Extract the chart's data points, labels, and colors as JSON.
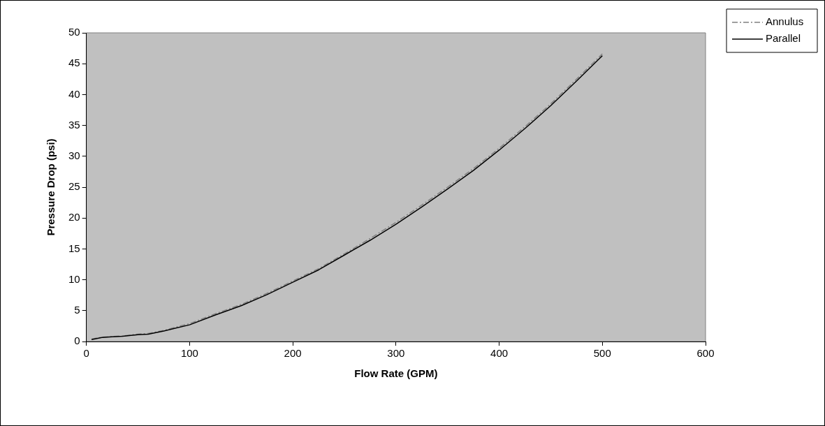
{
  "chart_data": {
    "type": "line",
    "xlabel": "Flow Rate (GPM)",
    "ylabel": "Pressure Drop (psi)",
    "xlim": [
      0,
      600
    ],
    "xticks": [
      0,
      100,
      200,
      300,
      400,
      500,
      600
    ],
    "ylim": [
      0,
      50
    ],
    "yticks": [
      0,
      5,
      10,
      15,
      20,
      25,
      30,
      35,
      40,
      45,
      50
    ],
    "grid": false,
    "legend": "top right",
    "marker": "none",
    "x": [
      5,
      15,
      25,
      35,
      50,
      60,
      75,
      100,
      125,
      150,
      175,
      200,
      225,
      250,
      275,
      300,
      325,
      350,
      375,
      400,
      425,
      450,
      475,
      500
    ],
    "series": [
      {
        "name": "Annulus",
        "color": "#808080",
        "line_style": "dashed",
        "values": [
          0.4,
          0.7,
          0.8,
          0.9,
          1.2,
          1.3,
          1.8,
          2.9,
          4.5,
          6.0,
          7.8,
          9.8,
          11.8,
          14.2,
          16.7,
          19.3,
          22.1,
          25.0,
          28.0,
          31.3,
          34.8,
          38.5,
          42.5,
          46.6
        ]
      },
      {
        "name": "Parallel",
        "color": "#000000",
        "line_style": "solid",
        "values": [
          0.3,
          0.65,
          0.75,
          0.85,
          1.1,
          1.2,
          1.7,
          2.7,
          4.3,
          5.8,
          7.6,
          9.6,
          11.6,
          14.0,
          16.4,
          19.0,
          21.8,
          24.7,
          27.7,
          31.0,
          34.5,
          38.2,
          42.2,
          46.3
        ]
      }
    ]
  }
}
